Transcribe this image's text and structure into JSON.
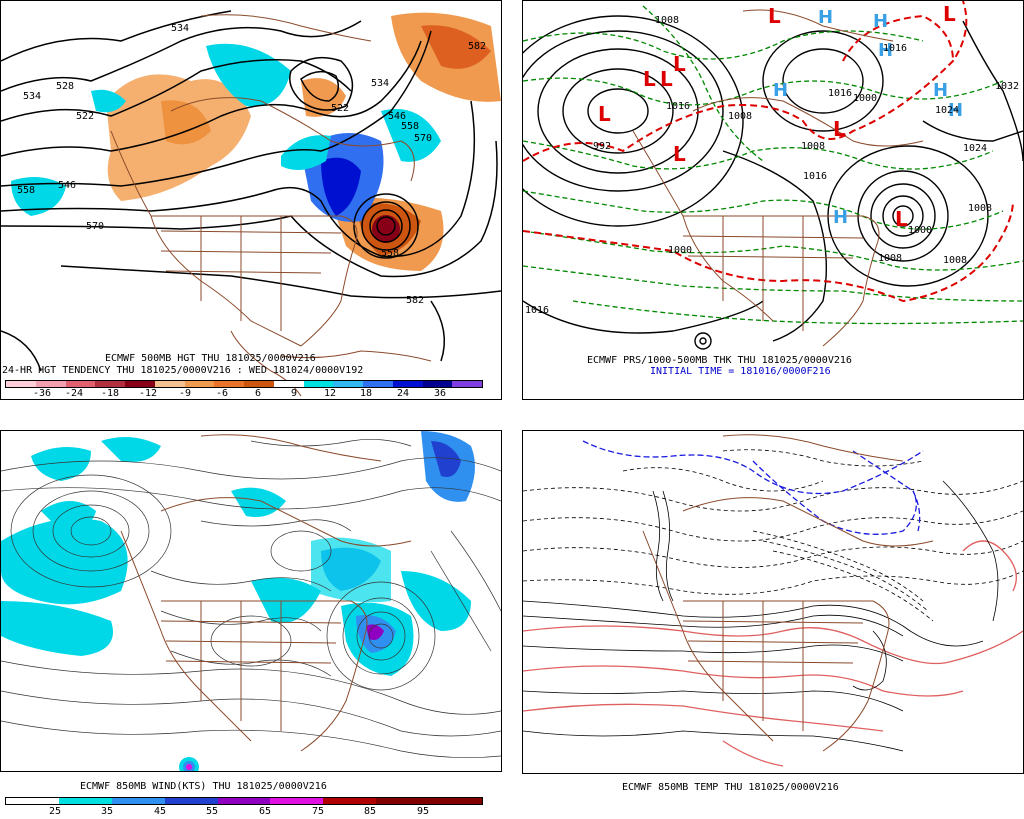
{
  "panels": {
    "hgt500": {
      "title": "ECMWF 500MB HGT THU 181025/0000V216",
      "subtitle": "24-HR HGT TENDENCY THU 181025/0000V216 : WED 181024/0000V192",
      "contour_labels": [
        "534",
        "528",
        "522",
        "534",
        "546",
        "558",
        "570",
        "582",
        "522",
        "546",
        "558",
        "570",
        "558",
        "582",
        "534"
      ],
      "scale": {
        "ticks": [
          "-36",
          "-24",
          "-18",
          "-12",
          "-9",
          "-6",
          "6",
          "9",
          "12",
          "18",
          "24",
          "36"
        ],
        "colors": [
          "#ffd0d8",
          "#f0a0b0",
          "#e06070",
          "#b03040",
          "#880018",
          "#f5c090",
          "#f09a50",
          "#e8742a",
          "#cc5510",
          "#ffffff",
          "#00e0e0",
          "#30b8f0",
          "#3070f0",
          "#0010d0",
          "#000090",
          "#8040e0"
        ]
      }
    },
    "prs_thk": {
      "title": "ECMWF PRS/1000-500MB THK THU 181025/0000V216",
      "initial_time": "INITIAL TIME = 181016/0000F216",
      "labels": [
        "1008",
        "1016",
        "1032",
        "1024",
        "1024",
        "1008",
        "1016",
        "1016",
        "1008",
        "1016",
        "1000",
        "1000",
        "1008",
        "992",
        "1008",
        "1000",
        "1008",
        "1016"
      ],
      "lows": [
        "L",
        "L",
        "L",
        "L",
        "L",
        "L",
        "L",
        "L",
        "L"
      ],
      "highs": [
        "H",
        "H",
        "H",
        "H",
        "H",
        "H",
        "H"
      ]
    },
    "wind850": {
      "title": "ECMWF 850MB WIND(KTS) THU 181025/0000V216",
      "scale": {
        "ticks": [
          "25",
          "35",
          "45",
          "55",
          "65",
          "75",
          "85",
          "95"
        ],
        "colors": [
          "#ffffff",
          "#00e0e0",
          "#3090f0",
          "#2040d0",
          "#9000c0",
          "#e010e0",
          "#b00000",
          "#800000",
          "#800000"
        ]
      }
    },
    "temp850": {
      "title": "ECMWF 850MB TEMP THU 181025/0000V216"
    }
  },
  "colors": {
    "coast": "#8b4a2b",
    "contour": "#000000",
    "thickness": "#008800",
    "freezing": "#dd0000"
  }
}
